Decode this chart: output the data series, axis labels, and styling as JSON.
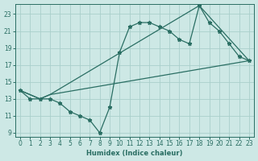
{
  "xlabel": "Humidex (Indice chaleur)",
  "xlim": [
    -0.5,
    23.5
  ],
  "ylim": [
    8.5,
    24.2
  ],
  "xticks": [
    0,
    1,
    2,
    3,
    4,
    5,
    6,
    7,
    8,
    9,
    10,
    11,
    12,
    13,
    14,
    15,
    16,
    17,
    18,
    19,
    20,
    21,
    22,
    23
  ],
  "yticks": [
    9,
    11,
    13,
    15,
    17,
    19,
    21,
    23
  ],
  "bg_color": "#cde8e5",
  "line_color": "#2a6e63",
  "grid_color": "#aacfcb",
  "line_main": {
    "x": [
      0,
      1,
      2,
      3,
      4,
      5,
      6,
      7,
      8,
      9,
      10,
      11,
      12,
      13,
      14,
      15,
      16,
      17,
      18,
      19,
      20,
      21,
      22,
      23
    ],
    "y": [
      14,
      13,
      13,
      13,
      12.5,
      11.5,
      11,
      10.5,
      9,
      12,
      18.5,
      21.5,
      22,
      22,
      21.5,
      21,
      20,
      19.5,
      24,
      22,
      21,
      19.5,
      18,
      17.5
    ]
  },
  "line_smooth1": {
    "x": [
      0,
      2,
      3,
      18,
      23
    ],
    "y": [
      14,
      13,
      13.5,
      24,
      17.5
    ]
  },
  "line_smooth2": {
    "x": [
      0,
      2,
      3,
      23
    ],
    "y": [
      14,
      13,
      13.5,
      17.5
    ]
  }
}
